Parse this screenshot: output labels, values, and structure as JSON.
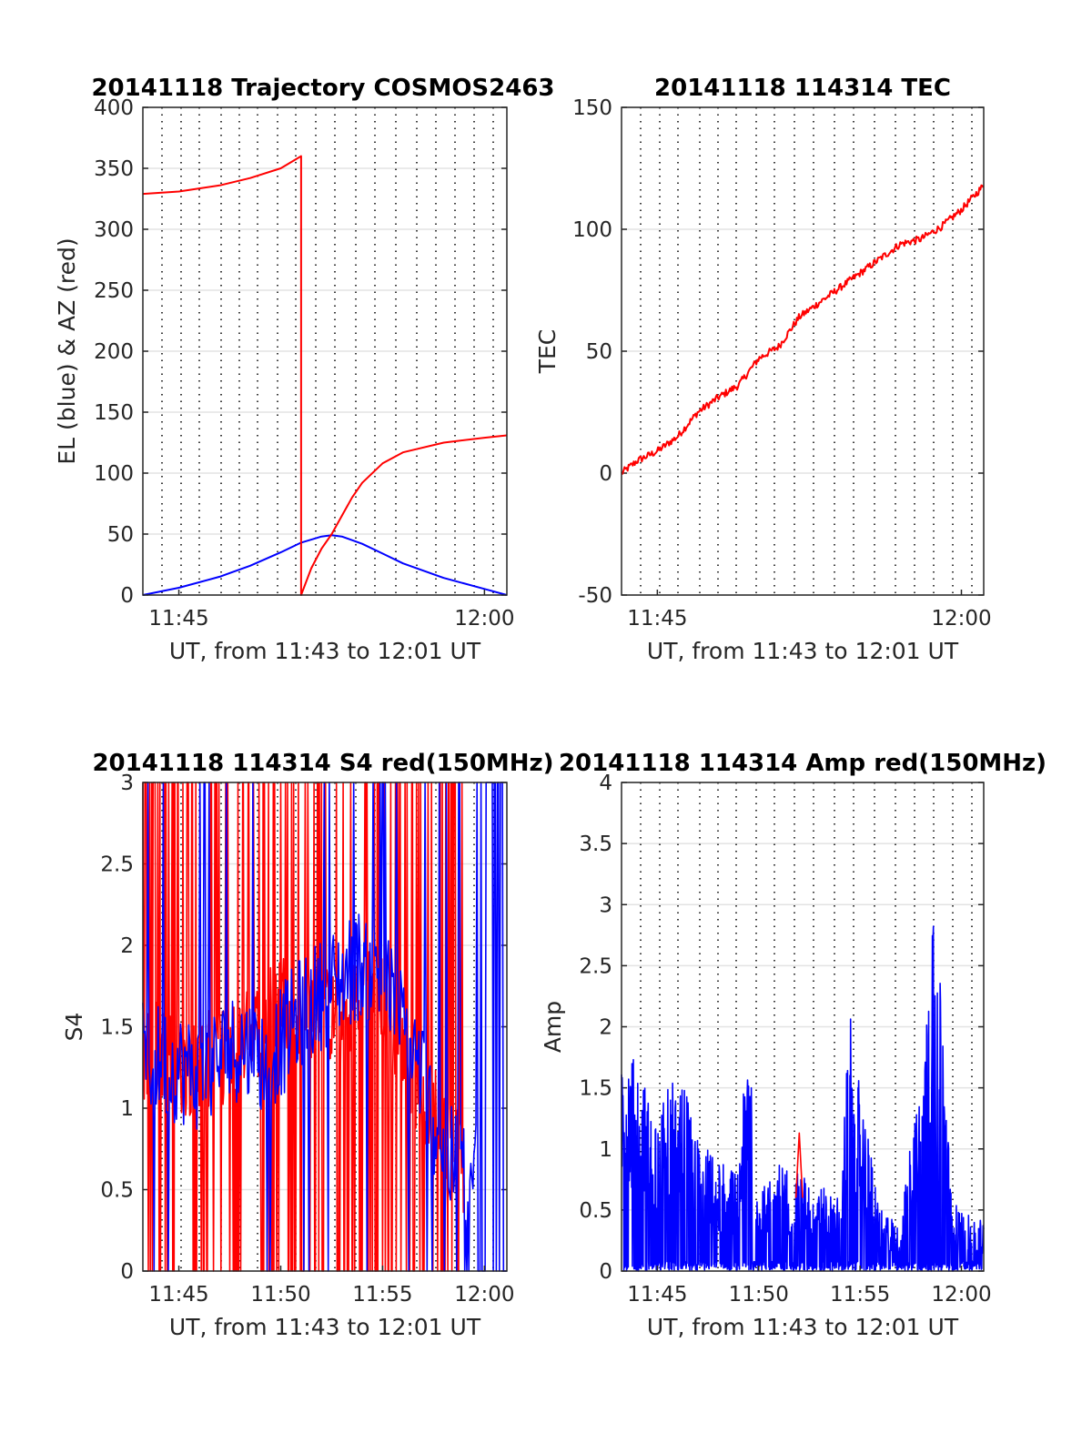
{
  "colors": {
    "el": "#0000ff",
    "az": "#ff0000",
    "tec": "#ff0000",
    "s4_red": "#ff0000",
    "s4_blue": "#0000ff",
    "amp_blue": "#0000ff",
    "amp_red": "#ff0000"
  },
  "chart_data": [
    {
      "id": "trajectory",
      "type": "line",
      "title": "20141118 Trajectory COSMOS2463",
      "xlabel": "UT, from 11:43 to 12:01 UT",
      "ylabel": "EL (blue) & AZ (red)",
      "xlim": [
        "11:43:14",
        "12:01:06"
      ],
      "ylim": [
        0,
        400
      ],
      "x_tick_labels": [
        "11:45",
        "12:00"
      ],
      "y_tick_labels": [
        "0",
        "50",
        "100",
        "150",
        "200",
        "250",
        "300",
        "350",
        "400"
      ],
      "grid": true,
      "series": [
        {
          "color": "el",
          "x": [
            "11:43:14",
            "11:45:00",
            "11:47:00",
            "11:48:30",
            "11:50:00",
            "11:51:00",
            "11:52:00",
            "11:52:30",
            "11:53:00",
            "11:54:00",
            "11:55:00",
            "11:56:00",
            "11:58:00",
            "12:00:00",
            "12:01:06"
          ],
          "y": [
            0,
            6,
            15,
            24,
            35,
            43,
            48,
            49,
            48,
            42,
            34,
            26,
            14,
            5,
            0
          ]
        },
        {
          "color": "az",
          "x": [
            "11:43:14",
            "11:45:00",
            "11:47:00",
            "11:48:30",
            "11:50:00",
            "11:51:00",
            "11:51:00",
            "11:51:30",
            "11:52:00",
            "11:52:30",
            "11:53:00",
            "11:53:30",
            "11:54:00",
            "11:55:00",
            "11:56:00",
            "11:58:00",
            "12:00:00",
            "12:01:06"
          ],
          "y": [
            329,
            331,
            336,
            342,
            350,
            360,
            0,
            22,
            38,
            50,
            65,
            80,
            92,
            108,
            117,
            125,
            129,
            131
          ]
        }
      ]
    },
    {
      "id": "tec",
      "type": "line",
      "title": "20141118 114314 TEC",
      "xlabel": "UT, from 11:43 to 12:01 UT",
      "ylabel": "TEC",
      "xlim": [
        "11:43:14",
        "12:01:06"
      ],
      "ylim": [
        -50,
        150
      ],
      "x_tick_labels": [
        "11:45",
        "12:00"
      ],
      "y_tick_labels": [
        "-50",
        "0",
        "50",
        "100",
        "150"
      ],
      "grid": true,
      "series": [
        {
          "color": "tec",
          "x": [
            "11:43:14",
            "11:44:00",
            "11:45:00",
            "11:46:00",
            "11:47:00",
            "11:48:00",
            "11:49:00",
            "11:50:00",
            "11:51:00",
            "11:52:00",
            "11:53:00",
            "11:54:00",
            "11:55:00",
            "11:56:00",
            "11:57:00",
            "11:58:00",
            "11:59:00",
            "12:00:00",
            "12:01:06"
          ],
          "y": [
            0,
            5,
            9,
            15,
            25,
            31,
            36,
            47,
            52,
            64,
            70,
            76,
            82,
            88,
            94,
            96,
            101,
            108,
            118
          ]
        }
      ]
    },
    {
      "id": "s4",
      "type": "line",
      "title": "20141118 114314 S4 red(150MHz)",
      "xlabel": "UT, from 11:43 to 12:01 UT",
      "ylabel": "S4",
      "xlim": [
        "11:43:14",
        "12:01:06"
      ],
      "ylim": [
        0,
        3
      ],
      "x_tick_labels": [
        "11:45",
        "11:50",
        "11:55",
        "12:00"
      ],
      "y_tick_labels": [
        "0",
        "0.5",
        "1",
        "1.5",
        "2",
        "2.5",
        "3"
      ],
      "grid": true,
      "series": [
        {
          "color": "s4_red",
          "x": [
            "11:43:14",
            "11:44:00",
            "11:45:00",
            "11:46:00",
            "11:47:00",
            "11:48:00",
            "11:49:00",
            "11:50:00",
            "11:51:00",
            "11:52:00",
            "11:53:00",
            "11:54:00",
            "11:55:00",
            "11:56:00",
            "11:57:00",
            "11:58:00",
            "11:59:00",
            "12:00:00"
          ],
          "y": [
            1.3,
            1.4,
            1.2,
            1.3,
            1.3,
            1.4,
            1.5,
            1.7,
            1.6,
            1.6,
            1.5,
            1.8,
            1.7,
            1.3,
            1.1,
            0.9,
            0.6,
            0.5
          ]
        },
        {
          "color": "s4_blue",
          "x": [
            "11:43:14",
            "11:44:00",
            "11:45:00",
            "11:46:00",
            "11:47:00",
            "11:48:00",
            "11:49:00",
            "11:50:00",
            "11:51:00",
            "11:52:00",
            "11:53:00",
            "11:54:00",
            "11:55:00",
            "11:56:00",
            "11:57:00",
            "11:58:00",
            "11:59:00",
            "12:00:00"
          ],
          "y": [
            1.3,
            1.3,
            1.25,
            1.2,
            1.3,
            1.4,
            1.3,
            1.4,
            1.6,
            1.7,
            1.8,
            1.9,
            1.8,
            1.5,
            1.2,
            0.7,
            0.6,
            0.55
          ]
        }
      ]
    },
    {
      "id": "amp",
      "type": "line",
      "title": "20141118 114314 Amp red(150MHz)",
      "xlabel": "UT, from 11:43 to 12:01 UT",
      "ylabel": "Amp",
      "xlim": [
        "11:43:14",
        "12:01:06"
      ],
      "ylim": [
        0,
        4
      ],
      "x_tick_labels": [
        "11:45",
        "11:50",
        "11:55",
        "12:00"
      ],
      "y_tick_labels": [
        "0",
        "0.5",
        "1",
        "1.5",
        "2",
        "2.5",
        "3",
        "3.5",
        "4"
      ],
      "grid": true,
      "series": [
        {
          "color": "amp_blue",
          "x": [
            "11:43:14",
            "11:44:00",
            "11:45:00",
            "11:46:00",
            "11:47:00",
            "11:48:00",
            "11:49:00",
            "11:49:30",
            "11:50:00",
            "11:51:00",
            "11:52:00",
            "11:53:00",
            "11:54:00",
            "11:54:30",
            "11:55:00",
            "11:56:00",
            "11:57:00",
            "11:58:00",
            "11:58:30",
            "11:59:00",
            "11:59:30",
            "12:00:00",
            "12:01:06"
          ],
          "y": [
            1.9,
            1.7,
            1.3,
            1.7,
            1.1,
            0.9,
            0.8,
            2.1,
            0.7,
            0.9,
            0.8,
            0.7,
            0.6,
            2.2,
            1.5,
            0.5,
            0.4,
            1.8,
            3.0,
            2.3,
            0.6,
            0.5,
            0.4
          ]
        },
        {
          "color": "amp_red",
          "x": [
            "11:51:50",
            "11:52:00",
            "11:52:10"
          ],
          "y": [
            0.6,
            1.13,
            0.6
          ]
        }
      ]
    }
  ]
}
